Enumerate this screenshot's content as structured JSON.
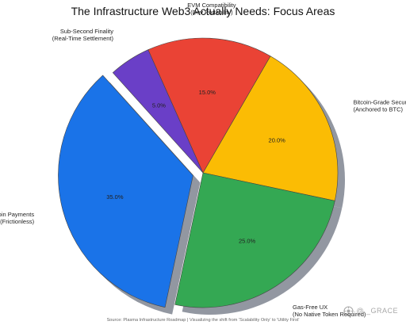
{
  "chart_data": {
    "type": "pie",
    "title": "The Infrastructure Web3 Actually Needs: Focus Areas",
    "source_note": "Source: Plasma Infrastructure Roadmap | Visualizing the shift from 'Scalability Only' to 'Utility First'",
    "exploded": "Stablecoin Payments (Frictionless)",
    "shadow": true,
    "slices": [
      {
        "label_line1": "Bitcoin-Grade Security",
        "label_line2": "(Anchored to BTC)",
        "value": 20.0,
        "pct_label": "20.0%",
        "color": "#FBBC04"
      },
      {
        "label_line1": "Gas-Free UX",
        "label_line2": "(No Native Token Required)",
        "value": 25.0,
        "pct_label": "25.0%",
        "color": "#34A853"
      },
      {
        "label_line1": "Stablecoin Payments",
        "label_line2": "(Frictionless)",
        "value": 35.0,
        "pct_label": "35.0%",
        "color": "#1A73E8"
      },
      {
        "label_line1": "Sub-Second Finality",
        "label_line2": "(Real-Time Settlement)",
        "value": 5.0,
        "pct_label": "5.0%",
        "color": "#6A3FC7"
      },
      {
        "label_line1": "EVM Compatibility",
        "label_line2": "(Dev Portability)",
        "value": 15.0,
        "pct_label": "15.0%",
        "color": "#EA4335"
      }
    ]
  },
  "watermark": {
    "text": "@ _GRACE",
    "icon": "watermark-logo-icon"
  }
}
